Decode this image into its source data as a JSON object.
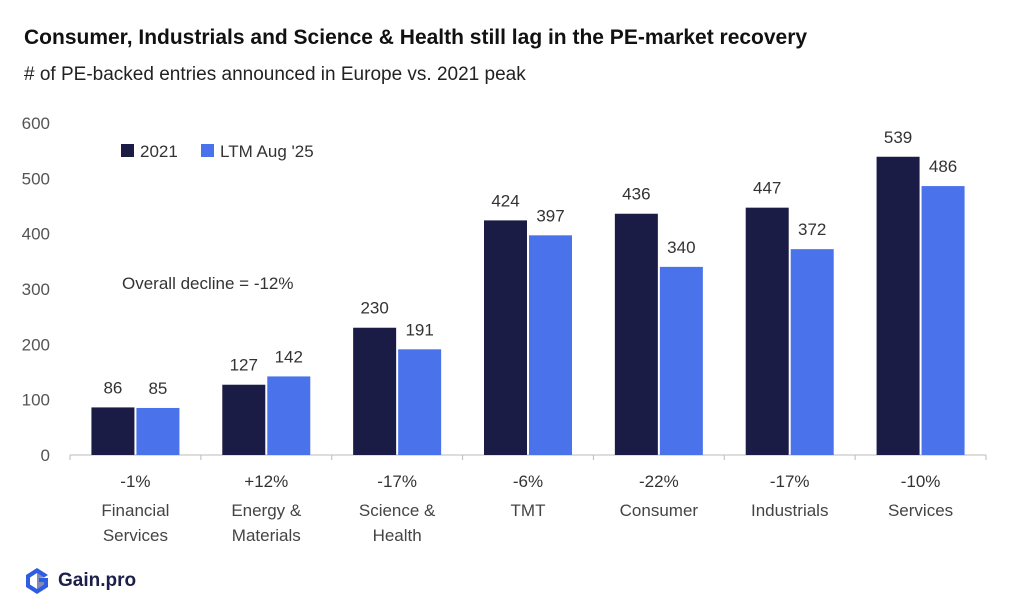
{
  "header": {
    "title": "Consumer, Industrials and Science & Health still lag in the PE-market recovery",
    "subtitle": "# of PE-backed entries announced in Europe vs. 2021 peak"
  },
  "chart_data": {
    "type": "bar",
    "title": "Consumer, Industrials and Science & Health still lag in the PE-market recovery",
    "subtitle": "# of PE-backed entries announced in Europe vs. 2021 peak",
    "categories": [
      [
        "Financial",
        "Services"
      ],
      [
        "Energy &",
        "Materials"
      ],
      [
        "Science &",
        "Health"
      ],
      [
        "TMT"
      ],
      [
        "Consumer"
      ],
      [
        "Industrials"
      ],
      [
        "Services"
      ]
    ],
    "series": [
      {
        "name": "2021",
        "color": "#1b1c46",
        "values": [
          86,
          127,
          230,
          424,
          436,
          447,
          539
        ]
      },
      {
        "name": "LTM Aug '25",
        "color": "#4a72ea",
        "values": [
          85,
          142,
          191,
          397,
          340,
          372,
          486
        ]
      }
    ],
    "changes": [
      "-1%",
      "+12%",
      "-17%",
      "-6%",
      "-22%",
      "-17%",
      "-10%"
    ],
    "annotation": "Overall decline  =  -12%",
    "yticks": [
      0,
      100,
      200,
      300,
      400,
      500,
      600
    ],
    "ylim": [
      0,
      600
    ],
    "xlabel": "",
    "ylabel": "",
    "grid": false,
    "legend_position": "top-left"
  },
  "brand": {
    "name": "Gain.pro",
    "color": "#1c1f4a",
    "accent": "#4a72ea",
    "icon": "gain-pro-logo-icon"
  }
}
